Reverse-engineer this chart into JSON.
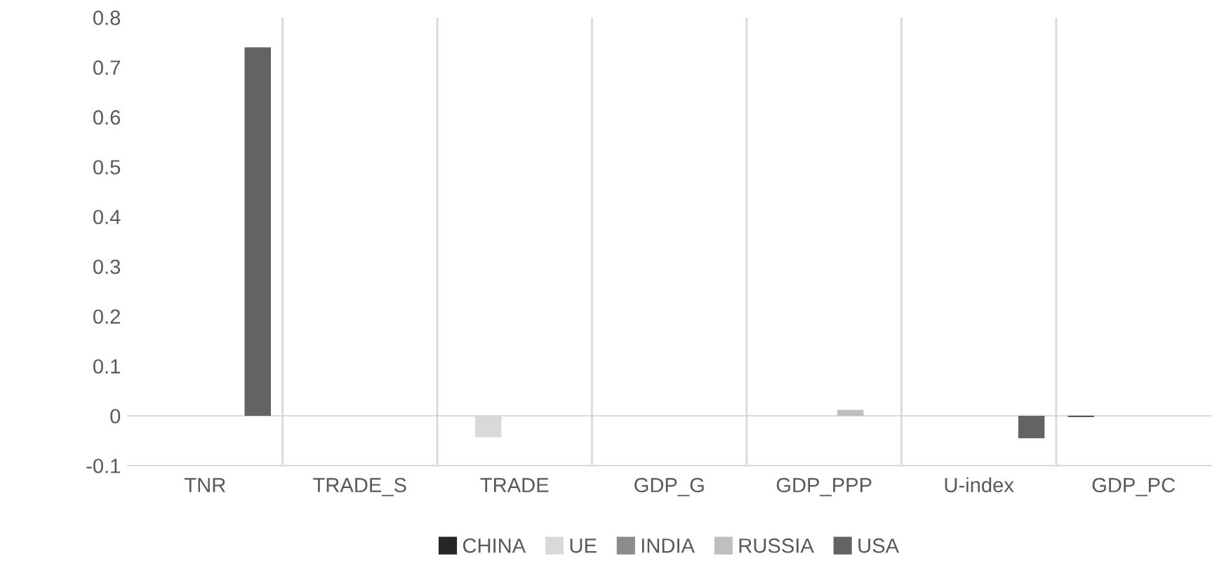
{
  "chart_data": {
    "type": "bar",
    "categories": [
      "TNR",
      "TRADE_S",
      "TRADE",
      "GDP_G",
      "GDP_PPP",
      "U-index",
      "GDP_PC"
    ],
    "series": [
      {
        "name": "CHINA",
        "color": "#262626",
        "values": [
          0,
          0,
          0,
          0,
          0,
          0,
          -0.002
        ]
      },
      {
        "name": "UE",
        "color": "#d9d9d9",
        "values": [
          0,
          0,
          -0.043,
          0,
          null,
          0,
          0
        ]
      },
      {
        "name": "INDIA",
        "color": "#8c8c8c",
        "values": [
          0,
          0,
          0,
          0,
          0,
          0,
          0
        ]
      },
      {
        "name": "RUSSIA",
        "color": "#bfbfbf",
        "values": [
          0,
          0,
          0,
          0,
          0.012,
          0,
          null
        ]
      },
      {
        "name": "USA",
        "color": "#636363",
        "values": [
          0.74,
          0,
          0,
          0,
          0,
          -0.045,
          0
        ]
      }
    ],
    "ylim": [
      -0.1,
      0.8
    ],
    "yticks": [
      -0.1,
      0,
      0.1,
      0.2,
      0.3,
      0.4,
      0.5,
      0.6,
      0.7,
      0.8
    ],
    "grid": "x",
    "legend": "bottom"
  }
}
